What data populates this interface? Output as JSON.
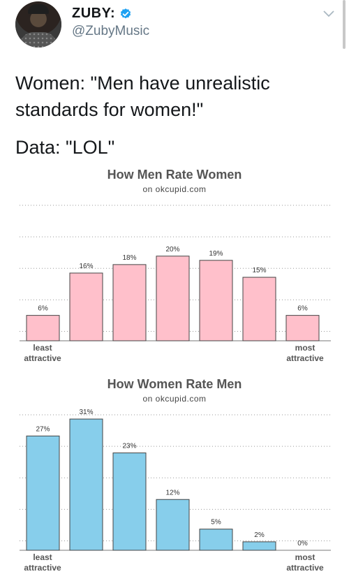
{
  "tweet": {
    "display_name": "ZUBY:",
    "handle": "@ZubyMusic",
    "verified": true,
    "line1": "Women: \"Men have unrealistic standards for women!\"",
    "line2": "Data: \"LOL\""
  },
  "icons": {
    "avatar": "profile-photo",
    "verified": "verified-badge-icon",
    "menu": "chevron-down-icon"
  },
  "colors": {
    "verified": "#1da1f2",
    "pink_bar": "#ffc0cb",
    "blue_bar": "#87ceeb"
  },
  "chart_data": [
    {
      "type": "bar",
      "title": "How Men Rate Women",
      "subtitle": "on okcupid.com",
      "x_start_label": "least attractive",
      "x_end_label": "most attractive",
      "value_labels": [
        "6%",
        "16%",
        "18%",
        "20%",
        "19%",
        "15%",
        "6%"
      ],
      "values": [
        6,
        16,
        18,
        20,
        19,
        15,
        6
      ],
      "ylim": [
        0,
        32
      ],
      "bar_color": "#ffc0cb",
      "grid": true
    },
    {
      "type": "bar",
      "title": "How Women Rate Men",
      "subtitle": "on okcupid.com",
      "x_start_label": "least attractive",
      "x_end_label": "most attractive",
      "value_labels": [
        "27%",
        "31%",
        "23%",
        "12%",
        "5%",
        "2%",
        "0%"
      ],
      "values": [
        27,
        31,
        23,
        12,
        5,
        2,
        0
      ],
      "ylim": [
        0,
        32
      ],
      "bar_color": "#87ceeb",
      "grid": true
    }
  ]
}
